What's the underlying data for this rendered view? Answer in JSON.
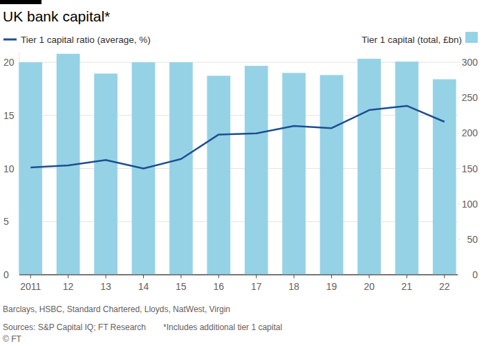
{
  "chart_data": {
    "type": "bar",
    "title": "UK bank capital*",
    "note": "Barclays, HSBC, Standard Chartered, Lloyds, NatWest, Virgin",
    "source": "Sources: S&P Capital IQ; FT Research",
    "footnote": "*Includes additional tier 1 capital",
    "credit": "© FT",
    "categories": [
      "2011",
      "12",
      "13",
      "14",
      "15",
      "16",
      "17",
      "18",
      "19",
      "20",
      "21",
      "22"
    ],
    "series": [
      {
        "name": "Tier 1 capital ratio (average, %)",
        "type": "line",
        "color": "#1d4f91",
        "axis": "y",
        "values": [
          10.1,
          10.3,
          10.8,
          10.0,
          10.9,
          13.2,
          13.3,
          14.0,
          13.8,
          15.5,
          15.9,
          14.4
        ]
      },
      {
        "name": "Tier 1 capital (total, £bn)",
        "type": "bar",
        "color": "#96d2e6",
        "axis": "y2",
        "values": [
          300,
          312,
          284,
          300,
          300,
          281,
          295,
          285,
          282,
          305,
          301,
          276
        ]
      }
    ],
    "ylim": [
      0,
      21
    ],
    "yticks": [
      0,
      5,
      10,
      15,
      20
    ],
    "y2lim": [
      0,
      315
    ],
    "y2ticks": [
      0,
      50,
      100,
      150,
      200,
      250,
      300
    ],
    "grid": true
  }
}
